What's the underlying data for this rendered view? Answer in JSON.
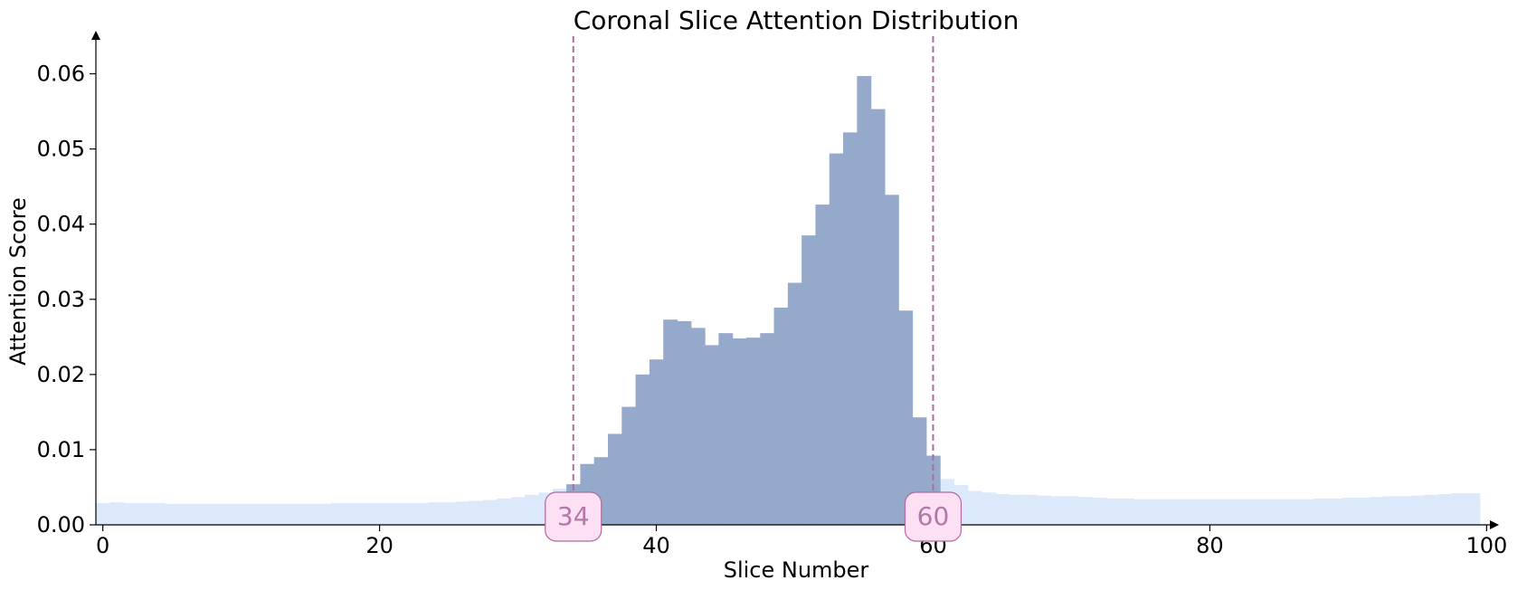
{
  "chart_data": {
    "type": "bar",
    "title": "Coronal Slice Attention Distribution",
    "xlabel": "Slice Number",
    "ylabel": "Attention Score",
    "xlim": [
      -0.5,
      100.5
    ],
    "ylim": [
      0,
      0.065
    ],
    "xticks": [
      0,
      20,
      40,
      60,
      80,
      100
    ],
    "yticks": [
      0.0,
      0.01,
      0.02,
      0.03,
      0.04,
      0.05,
      0.06
    ],
    "ytick_labels": [
      "0.00",
      "0.01",
      "0.02",
      "0.03",
      "0.04",
      "0.05",
      "0.06"
    ],
    "grid": false,
    "highlight_range": [
      34,
      60
    ],
    "markers": [
      {
        "label": "34",
        "x": 34
      },
      {
        "label": "60",
        "x": 60
      }
    ],
    "colors": {
      "background_bars": "#dce9fb",
      "highlight_bars": "#95a9cb",
      "marker_line": "#b06a9c",
      "marker_box_fill": "#fde0f4",
      "marker_box_stroke": "#b06a9c",
      "marker_text": "#b07aa8"
    },
    "x": [
      0,
      1,
      2,
      3,
      4,
      5,
      6,
      7,
      8,
      9,
      10,
      11,
      12,
      13,
      14,
      15,
      16,
      17,
      18,
      19,
      20,
      21,
      22,
      23,
      24,
      25,
      26,
      27,
      28,
      29,
      30,
      31,
      32,
      33,
      34,
      35,
      36,
      37,
      38,
      39,
      40,
      41,
      42,
      43,
      44,
      45,
      46,
      47,
      48,
      49,
      50,
      51,
      52,
      53,
      54,
      55,
      56,
      57,
      58,
      59,
      60,
      61,
      62,
      63,
      64,
      65,
      66,
      67,
      68,
      69,
      70,
      71,
      72,
      73,
      74,
      75,
      76,
      77,
      78,
      79,
      80,
      81,
      82,
      83,
      84,
      85,
      86,
      87,
      88,
      89,
      90,
      91,
      92,
      93,
      94,
      95,
      96,
      97,
      98,
      99
    ],
    "values": [
      0.0029,
      0.003,
      0.0029,
      0.0029,
      0.0029,
      0.0028,
      0.0028,
      0.0028,
      0.0028,
      0.0028,
      0.0028,
      0.0028,
      0.0028,
      0.0028,
      0.0028,
      0.0028,
      0.0028,
      0.0029,
      0.0029,
      0.0029,
      0.0029,
      0.0029,
      0.0029,
      0.0029,
      0.003,
      0.003,
      0.0031,
      0.0032,
      0.0033,
      0.0035,
      0.0037,
      0.004,
      0.0043,
      0.0048,
      0.0054,
      0.0081,
      0.009,
      0.0121,
      0.0157,
      0.02,
      0.022,
      0.0273,
      0.0271,
      0.0262,
      0.0239,
      0.0255,
      0.0248,
      0.0249,
      0.0255,
      0.0289,
      0.0322,
      0.0385,
      0.0426,
      0.0494,
      0.0522,
      0.0597,
      0.0553,
      0.0439,
      0.0285,
      0.0143,
      0.0092,
      0.0061,
      0.0053,
      0.0045,
      0.0043,
      0.0041,
      0.004,
      0.004,
      0.0039,
      0.0038,
      0.0038,
      0.0037,
      0.0036,
      0.0035,
      0.0035,
      0.0034,
      0.0034,
      0.0034,
      0.0034,
      0.0034,
      0.0034,
      0.0034,
      0.0034,
      0.0034,
      0.0034,
      0.0034,
      0.0034,
      0.0034,
      0.0035,
      0.0035,
      0.0036,
      0.0036,
      0.0037,
      0.0038,
      0.0038,
      0.0039,
      0.004,
      0.0041,
      0.0042,
      0.0042
    ]
  }
}
